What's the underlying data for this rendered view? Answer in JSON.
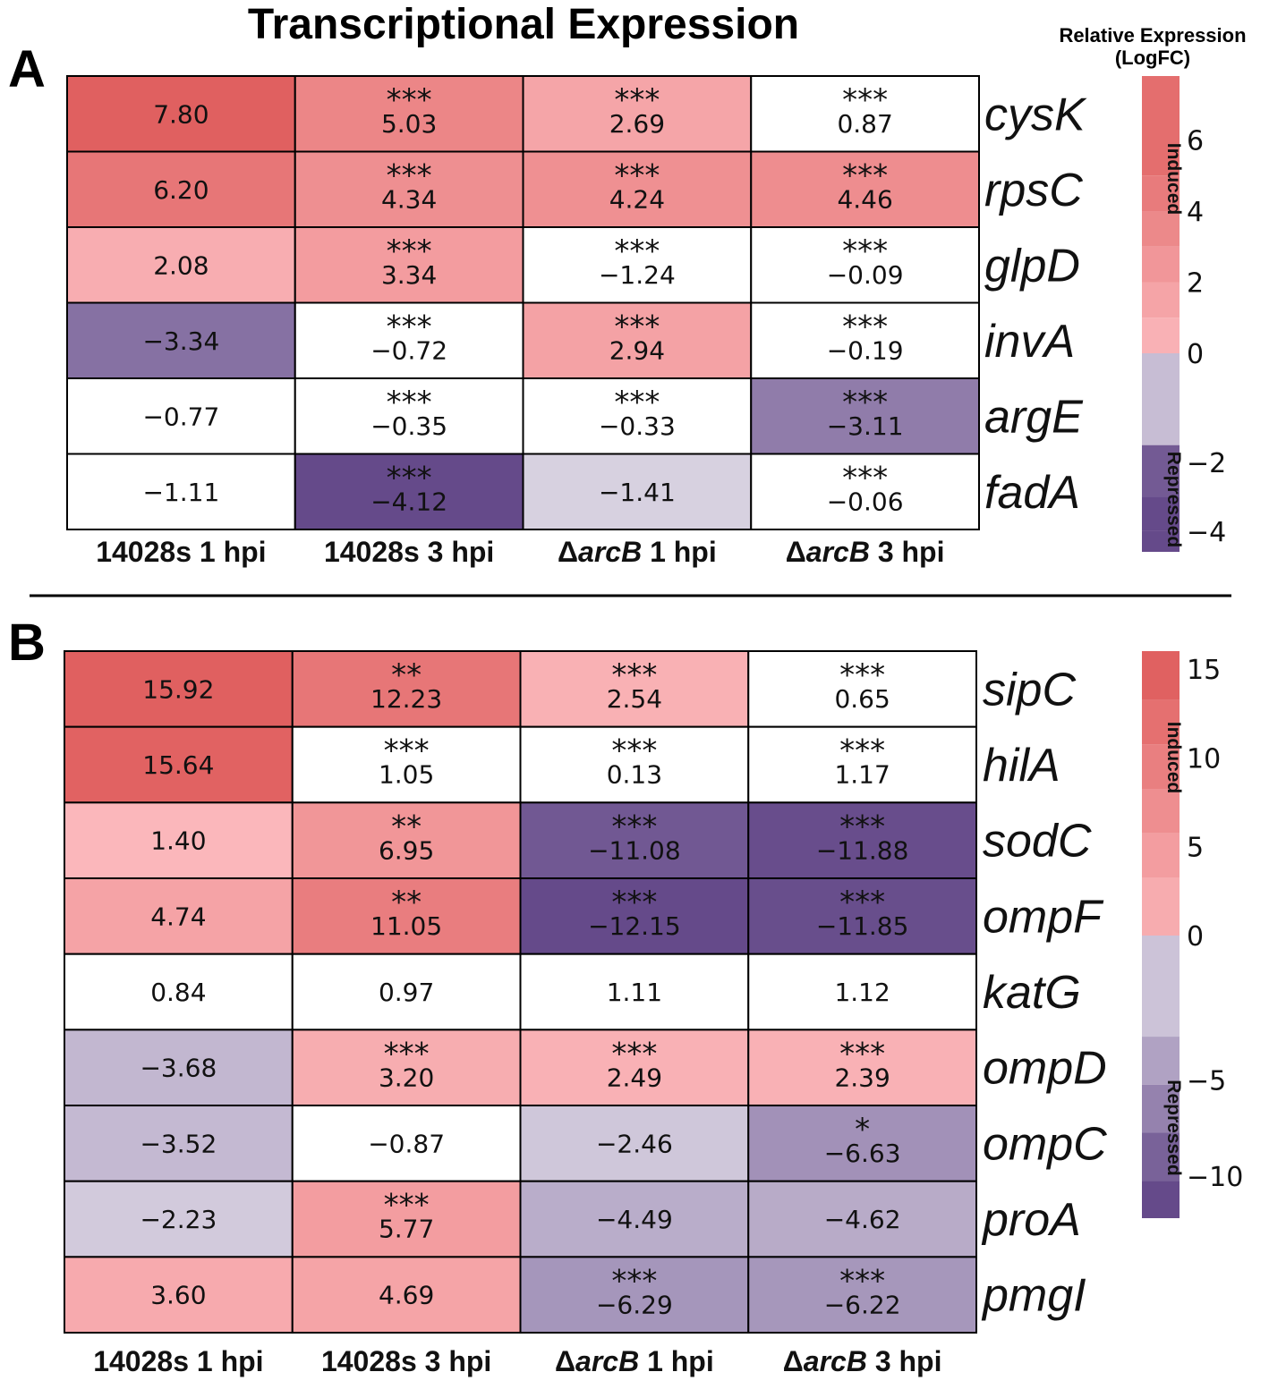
{
  "title": "Transcriptional Expression",
  "legend": {
    "title_line1": "Relative Expression",
    "title_line2": "(LogFC)",
    "induced_label": "Induced",
    "repressed_label": "Repressed"
  },
  "colors": {
    "high": "#e06060",
    "mid": "#ffffff",
    "low": "#654a8a",
    "grid": "#000000"
  },
  "chart_data": [
    {
      "type": "heatmap",
      "panel_label": "A",
      "genes": [
        "cysK",
        "rpsC",
        "glpD",
        "invA",
        "argE",
        "fadA"
      ],
      "columns": [
        {
          "prefix": "14028s 1 hpi",
          "italic": "",
          "suffix": ""
        },
        {
          "prefix": "14028s 3 hpi",
          "italic": "",
          "suffix": ""
        },
        {
          "prefix": "Δ",
          "italic": "arcB",
          "suffix": " 1 hpi"
        },
        {
          "prefix": "Δ",
          "italic": "arcB",
          "suffix": " 3 hpi"
        }
      ],
      "values": [
        [
          "7.80",
          "5.03",
          "2.69",
          "0.87"
        ],
        [
          "6.20",
          "4.34",
          "4.24",
          "4.46"
        ],
        [
          "2.08",
          "3.34",
          "−1.24",
          "−0.09"
        ],
        [
          "−3.34",
          "−0.72",
          "2.94",
          "−0.19"
        ],
        [
          "−0.77",
          "−0.35",
          "−0.33",
          "−3.11"
        ],
        [
          "−1.11",
          "−4.12",
          "−1.41",
          "−0.06"
        ]
      ],
      "significance": [
        [
          "",
          "***",
          "***",
          "***"
        ],
        [
          "",
          "***",
          "***",
          "***"
        ],
        [
          "",
          "***",
          "***",
          "***"
        ],
        [
          "",
          "***",
          "***",
          "***"
        ],
        [
          "",
          "***",
          "***",
          "***"
        ],
        [
          "",
          "***",
          "",
          "***"
        ]
      ],
      "colorbar": {
        "range": [
          -4.6,
          7.8
        ],
        "ticks": [
          "6",
          "4",
          "2",
          "0",
          "−2",
          "−4"
        ],
        "tick_values": [
          6,
          4,
          2,
          0,
          -2,
          -4
        ],
        "pos_steps": [
          0.5,
          1.5,
          2.5,
          3.5,
          4.5,
          5.5
        ],
        "neg_steps": [
          -0.5,
          -2.5,
          -3.5,
          -4.5
        ]
      }
    },
    {
      "type": "heatmap",
      "panel_label": "B",
      "genes": [
        "sipC",
        "hilA",
        "sodC",
        "ompF",
        "katG",
        "ompD",
        "ompC",
        "proA",
        "pmgI"
      ],
      "columns": [
        {
          "prefix": "14028s 1 hpi",
          "italic": "",
          "suffix": ""
        },
        {
          "prefix": "14028s 3 hpi",
          "italic": "",
          "suffix": ""
        },
        {
          "prefix": "Δ",
          "italic": "arcB",
          "suffix": " 1 hpi"
        },
        {
          "prefix": "Δ",
          "italic": "arcB",
          "suffix": " 3 hpi"
        }
      ],
      "values": [
        [
          "15.92",
          "12.23",
          "2.54",
          "0.65"
        ],
        [
          "15.64",
          "1.05",
          "0.13",
          "1.17"
        ],
        [
          "1.40",
          "6.95",
          "−11.08",
          "−11.88"
        ],
        [
          "4.74",
          "11.05",
          "−12.15",
          "−11.85"
        ],
        [
          "0.84",
          "0.97",
          "1.11",
          "1.12"
        ],
        [
          "−3.68",
          "3.20",
          "2.49",
          "2.39"
        ],
        [
          "−3.52",
          "−0.87",
          "−2.46",
          "−6.63"
        ],
        [
          "−2.23",
          "5.77",
          "−4.49",
          "−4.62"
        ],
        [
          "3.60",
          "4.69",
          "−6.29",
          "−6.22"
        ]
      ],
      "significance": [
        [
          "",
          "**",
          "***",
          "***"
        ],
        [
          "",
          "***",
          "***",
          "***"
        ],
        [
          "",
          "**",
          "***",
          "***"
        ],
        [
          "",
          "**",
          "***",
          "***"
        ],
        [
          "",
          "",
          "",
          ""
        ],
        [
          "",
          "***",
          "***",
          "***"
        ],
        [
          "",
          "",
          "",
          "*"
        ],
        [
          "",
          "***",
          "",
          ""
        ],
        [
          "",
          "",
          "***",
          "***"
        ]
      ],
      "colorbar": {
        "range": [
          -12.2,
          16.0
        ],
        "ticks": [
          "15",
          "10",
          "5",
          "0",
          "−5",
          "−10"
        ],
        "tick_values": [
          15,
          10,
          5,
          0,
          -5,
          -10
        ],
        "pos_steps": [
          2,
          4.5,
          7,
          9.5,
          12,
          14.5
        ],
        "neg_steps": [
          -1.5,
          -4,
          -6.5,
          -9,
          -11.5
        ]
      }
    }
  ]
}
